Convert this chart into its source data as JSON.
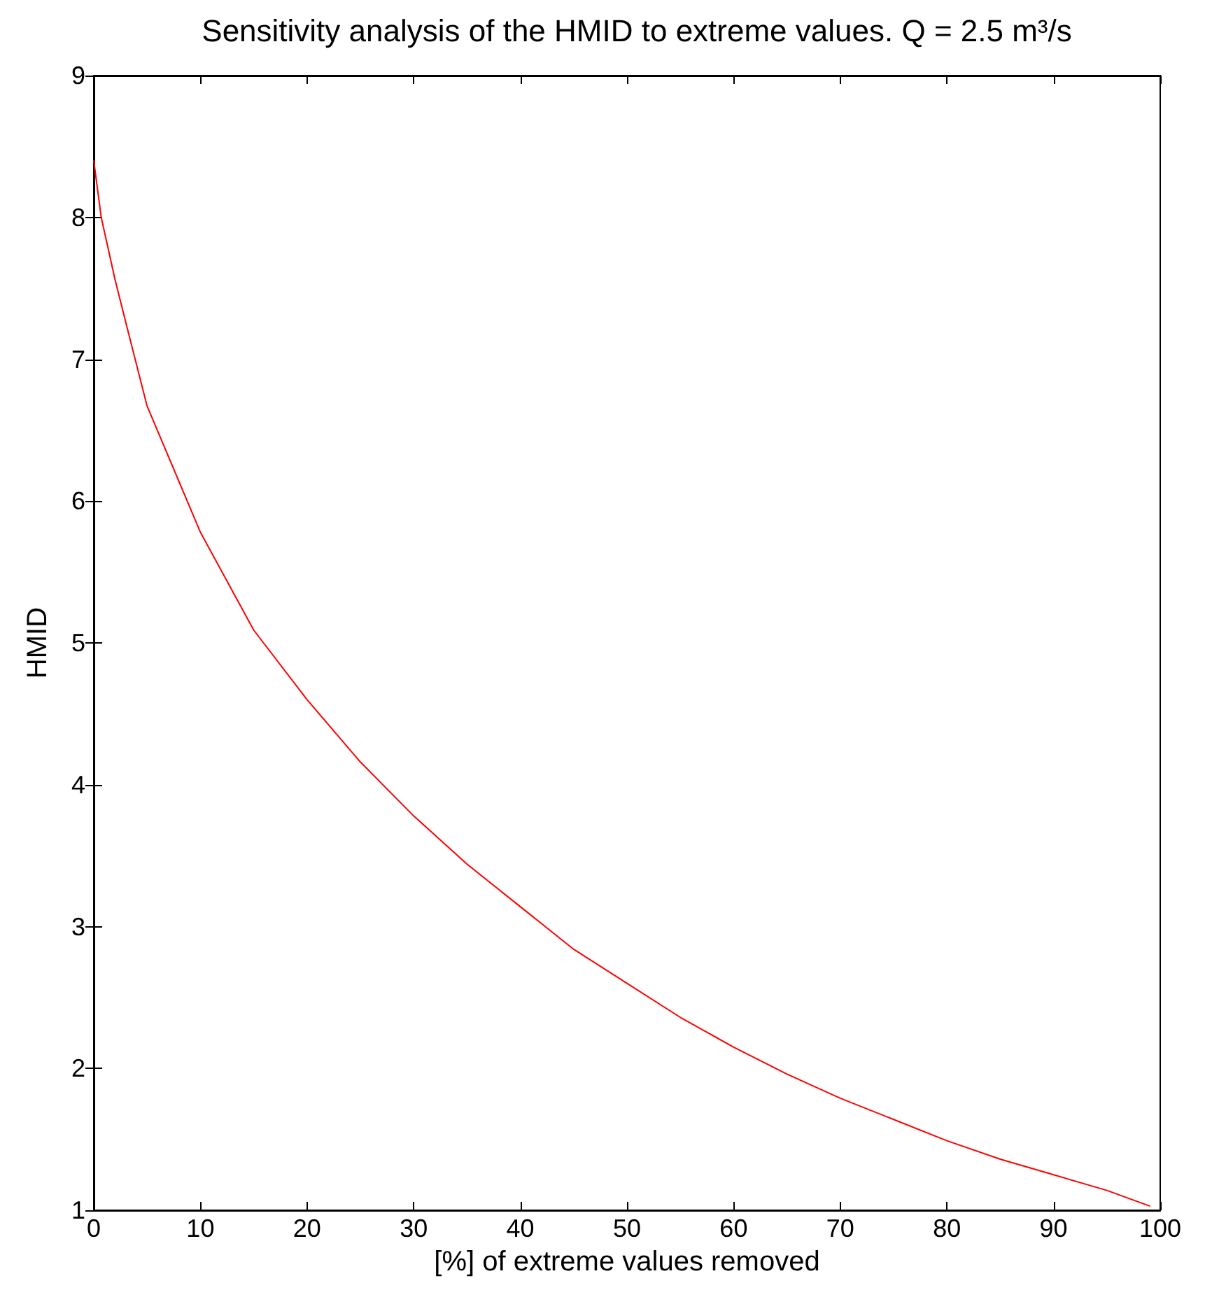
{
  "chart_data": {
    "type": "line",
    "title": "Sensitivity analysis of the HMID to extreme values. Q = 2.5 m³/s",
    "xlabel": "[%] of extreme values removed",
    "ylabel": "HMID",
    "x": [
      0,
      0.7,
      2,
      3,
      5,
      10,
      15,
      20,
      25,
      30,
      35,
      40,
      45,
      50,
      55,
      60,
      65,
      70,
      75,
      80,
      85,
      90,
      95,
      99
    ],
    "series": [
      {
        "color": "#ff0000",
        "values": [
          8.4,
          8.0,
          7.56,
          7.26,
          6.67,
          5.78,
          5.09,
          4.6,
          4.16,
          3.78,
          3.44,
          3.14,
          2.84,
          2.6,
          2.36,
          2.15,
          1.96,
          1.79,
          1.64,
          1.49,
          1.36,
          1.25,
          1.14,
          1.03
        ]
      }
    ],
    "xlim": [
      0,
      100
    ],
    "xticks": [
      0,
      10,
      20,
      30,
      40,
      50,
      60,
      70,
      80,
      90,
      100
    ],
    "ylim": [
      1,
      9
    ],
    "yticks": [
      1,
      2,
      3,
      4,
      5,
      6,
      7,
      8,
      9
    ],
    "grid": false,
    "marker": "none",
    "line_style": "solid"
  }
}
